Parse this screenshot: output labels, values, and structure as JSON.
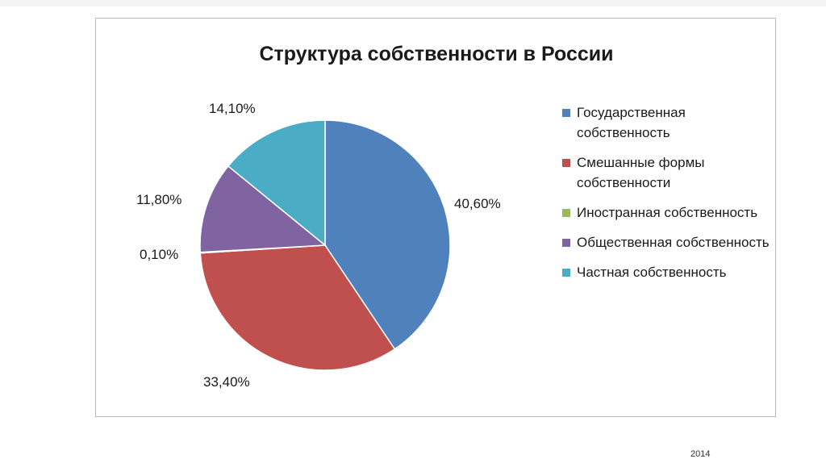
{
  "chart_data": {
    "type": "pie",
    "title": "Структура собственности в России",
    "categories": [
      "Государственная собственность",
      "Смешанные формы собственности",
      "Иностранная собственность",
      "Общественная собственность",
      "Частная собственность"
    ],
    "values": [
      40.6,
      33.4,
      0.1,
      11.8,
      14.1
    ],
    "data_labels": [
      "40,60%",
      "33,40%",
      "0,10%",
      "11,80%",
      "14,10%"
    ],
    "colors": [
      "#4F81BD",
      "#C0504D",
      "#9BBB59",
      "#8064A2",
      "#4BACC6"
    ],
    "legend_position": "right"
  },
  "footer": {
    "year": "2014"
  }
}
